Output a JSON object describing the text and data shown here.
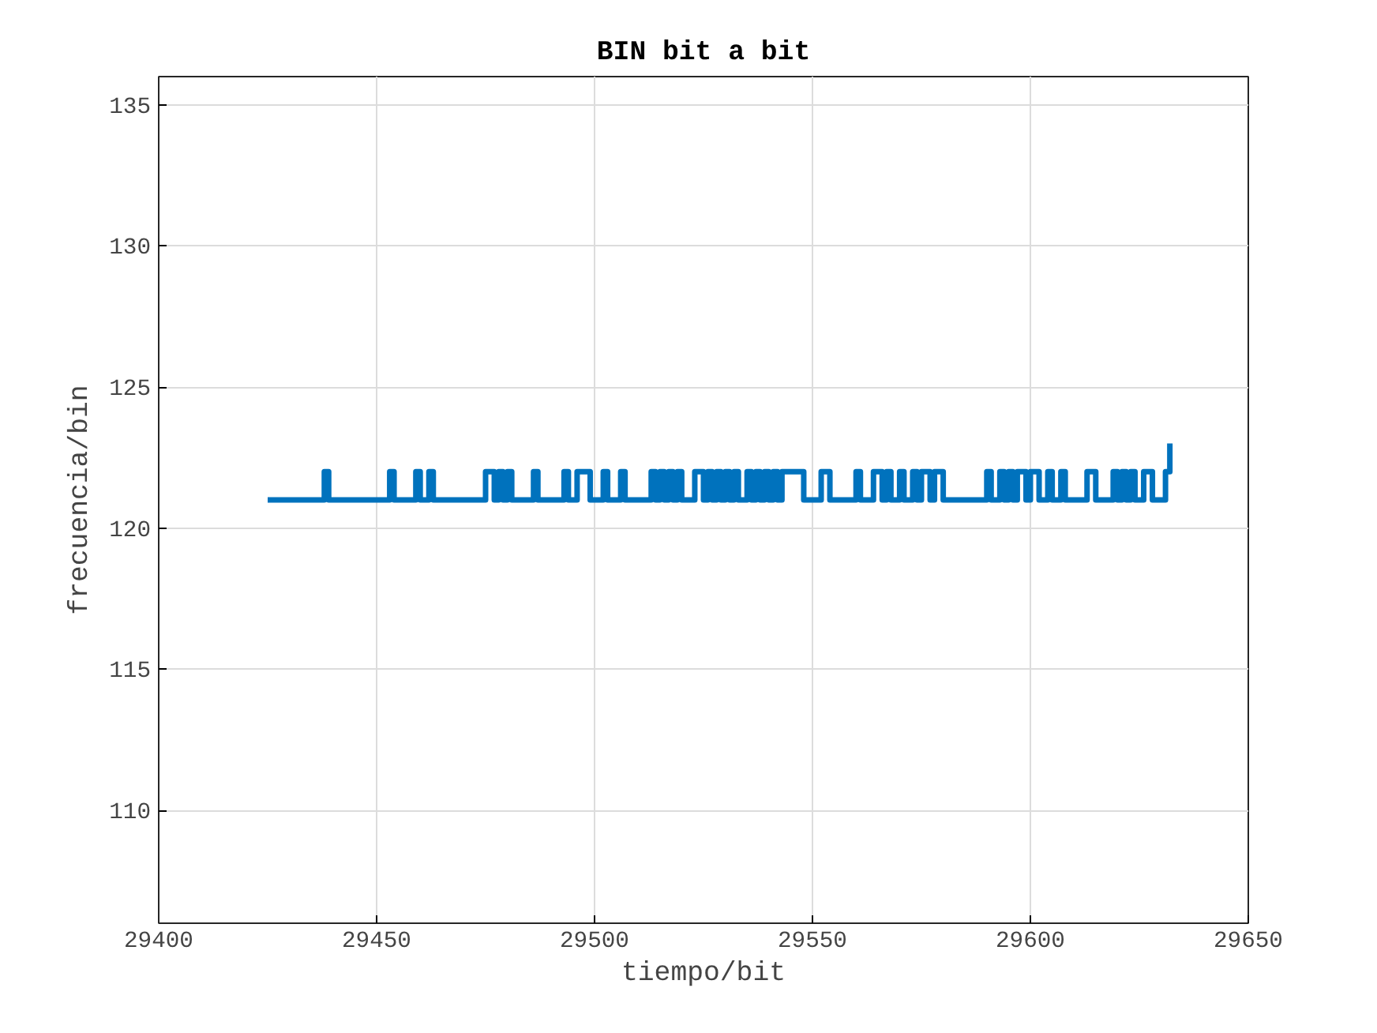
{
  "chart_data": {
    "type": "step",
    "title": "BIN bit a bit",
    "xlabel": "tiempo/bit",
    "ylabel": "frecuencia/bin",
    "x": [
      29425,
      29438,
      29439,
      29453,
      29454,
      29459,
      29460,
      29462,
      29463,
      29475,
      29477,
      29478,
      29479,
      29480,
      29481,
      29486,
      29487,
      29493,
      29494,
      29496,
      29499,
      29502,
      29503,
      29506,
      29507,
      29513,
      29514,
      29515,
      29516,
      29517,
      29518,
      29519,
      29520,
      29523,
      29525,
      29526,
      29527,
      29528,
      29529,
      29530,
      29531,
      29532,
      29533,
      29535,
      29536,
      29537,
      29538,
      29539,
      29540,
      29541,
      29542,
      29543,
      29548,
      29552,
      29554,
      29560,
      29561,
      29564,
      29566,
      29567,
      29568,
      29570,
      29571,
      29573,
      29574,
      29575,
      29577,
      29578,
      29580,
      29590,
      29591,
      29593,
      29594,
      29595,
      29596,
      29597,
      29599,
      29600,
      29602,
      29604,
      29605,
      29607,
      29608,
      29613,
      29615,
      29619,
      29620,
      29621,
      29622,
      29623,
      29624,
      29626,
      29628,
      29631,
      29632
    ],
    "series": [
      {
        "color": "#0072bd",
        "values": [
          121,
          122,
          121,
          122,
          121,
          122,
          121,
          122,
          121,
          122,
          121,
          122,
          121,
          122,
          121,
          122,
          121,
          122,
          121,
          122,
          121,
          122,
          121,
          122,
          121,
          122,
          121,
          122,
          121,
          122,
          121,
          122,
          121,
          122,
          121,
          122,
          121,
          122,
          121,
          122,
          121,
          122,
          121,
          122,
          121,
          122,
          121,
          122,
          121,
          122,
          121,
          122,
          121,
          122,
          121,
          122,
          121,
          122,
          121,
          122,
          121,
          122,
          121,
          122,
          121,
          122,
          121,
          122,
          121,
          122,
          121,
          122,
          121,
          122,
          121,
          122,
          121,
          122,
          121,
          122,
          121,
          122,
          121,
          122,
          121,
          122,
          121,
          122,
          121,
          122,
          121,
          122,
          121,
          122,
          123
        ]
      }
    ],
    "xlim": [
      29400,
      29650
    ],
    "ylim": [
      106,
      136
    ],
    "xticks": [
      29400,
      29450,
      29500,
      29550,
      29600,
      29650
    ],
    "yticks": [
      110,
      115,
      120,
      125,
      130,
      135
    ],
    "grid": true,
    "line_style": "solid"
  }
}
